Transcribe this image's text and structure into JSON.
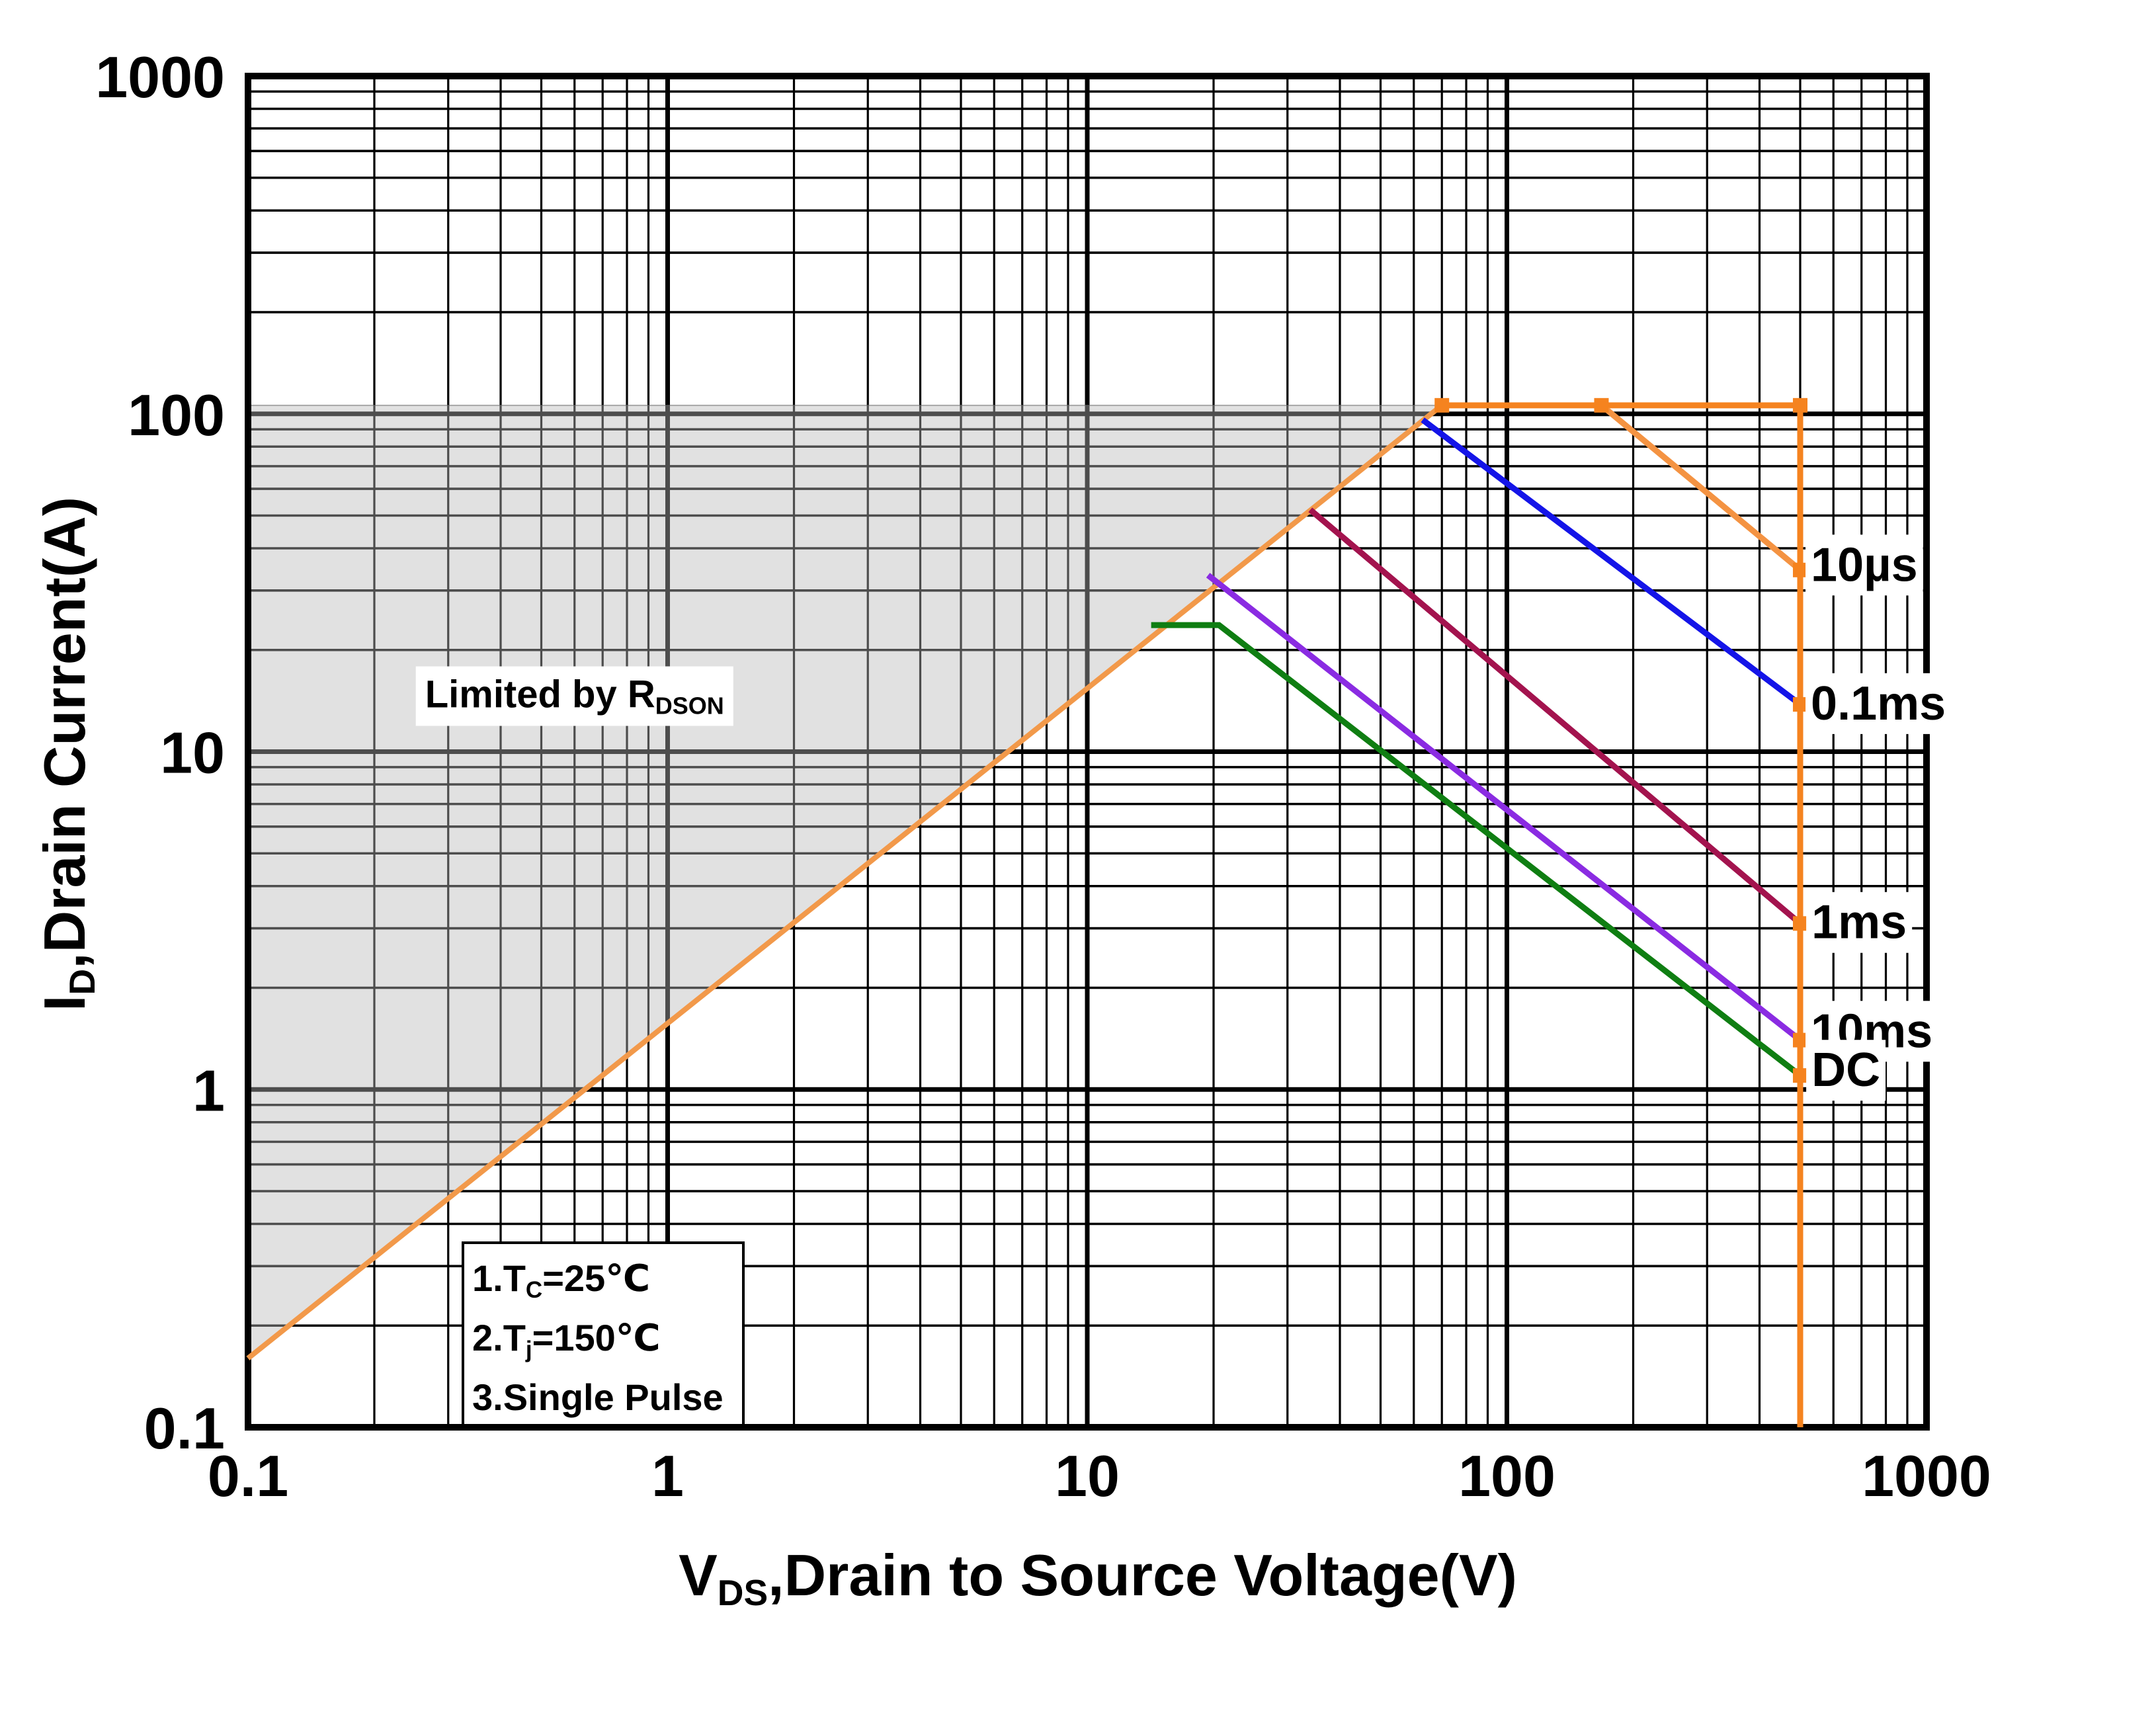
{
  "chart_data": {
    "type": "line",
    "title": "",
    "x_axis": {
      "label_parts": [
        "V",
        {
          "t": "DS",
          "sub": true
        },
        ",Drain to Source Voltage(V)"
      ],
      "scale": "log",
      "min": 0.1,
      "max": 1000,
      "tick_labels": [
        "0.1",
        "1",
        "10",
        "100",
        "1000"
      ],
      "tick_values": [
        0.1,
        1,
        10,
        100,
        1000
      ]
    },
    "y_axis": {
      "label_parts": [
        "I",
        {
          "t": "D",
          "sub": true
        },
        ",Drain Current(A)"
      ],
      "scale": "log",
      "min": 0.1,
      "max": 1000,
      "tick_labels": [
        "0.1",
        "1",
        "10",
        "100",
        "1000"
      ],
      "tick_values": [
        0.1,
        1,
        10,
        100,
        1000
      ]
    },
    "grid": {
      "on": true,
      "minor_color": "#000000",
      "major_color": "#000000"
    },
    "series": [
      {
        "name": "rdson-limit-line",
        "label": "",
        "color": "#F2994A",
        "width": 8,
        "points": [
          [
            0.1,
            0.16
          ],
          [
            70,
            106
          ]
        ]
      },
      {
        "name": "soa-10us-boundary",
        "label": "10µs",
        "color": "#F5831F",
        "width": 9,
        "points": [
          [
            70,
            106
          ],
          [
            500,
            106
          ],
          [
            500,
            0.1
          ]
        ]
      },
      {
        "name": "soa-10us-thermal",
        "label": "10µs",
        "color": "#F49342",
        "width": 9,
        "points": [
          [
            168,
            106
          ],
          [
            500,
            34.5
          ]
        ]
      },
      {
        "name": "soa-0p1ms",
        "label": "0.1ms",
        "color": "#1414E8",
        "width": 9,
        "points": [
          [
            63,
            96
          ],
          [
            500,
            13.8
          ]
        ]
      },
      {
        "name": "soa-1ms",
        "label": "1ms",
        "color": "#A3134E",
        "width": 9,
        "points": [
          [
            34,
            52
          ],
          [
            500,
            3.1
          ]
        ]
      },
      {
        "name": "soa-10ms",
        "label": "10ms",
        "color": "#8A2BE2",
        "width": 9,
        "points": [
          [
            19.4,
            33.3
          ],
          [
            500,
            1.4
          ]
        ]
      },
      {
        "name": "soa-dc",
        "label": "DC",
        "color": "#0F7E12",
        "width": 9,
        "points": [
          [
            14.2,
            23.7
          ],
          [
            20.6,
            23.7
          ],
          [
            500,
            1.1
          ]
        ]
      }
    ],
    "markers": {
      "color": "#F5831F",
      "size": 22,
      "shape": "square",
      "points": [
        [
          70,
          106
        ],
        [
          168,
          106
        ],
        [
          500,
          106
        ],
        [
          500,
          34.5
        ],
        [
          500,
          13.8
        ],
        [
          500,
          3.1
        ],
        [
          500,
          1.4
        ],
        [
          500,
          1.1
        ]
      ]
    },
    "curve_labels": [
      {
        "text": "10µs",
        "V": 530,
        "I": 36
      },
      {
        "text": "0.1ms",
        "V": 530,
        "I": 14
      },
      {
        "text": "1ms",
        "V": 532,
        "I": 3.15
      },
      {
        "text": "10ms",
        "V": 530,
        "I": 1.5
      },
      {
        "text": "DC",
        "V": 532,
        "I": 1.15
      }
    ],
    "region": {
      "name": "limited-by-rdson-region",
      "fill": "rgba(183,183,183,0.42)",
      "points": [
        [
          0.1,
          0.16
        ],
        [
          70,
          106
        ],
        [
          0.1,
          106
        ]
      ],
      "label_parts": [
        "Limited by R",
        {
          "t": "DSON",
          "sub": true
        }
      ],
      "label_anchor": {
        "V": 0.6,
        "I": 14.8
      }
    },
    "notes": {
      "lines": [
        [
          "1.T",
          {
            "t": "C",
            "sub": true
          },
          "=25℃"
        ],
        [
          "2.T",
          {
            "t": "j",
            "sub": true
          },
          "=150℃"
        ],
        [
          "3.Single Pulse"
        ]
      ]
    },
    "legend_position": "right-inline"
  }
}
